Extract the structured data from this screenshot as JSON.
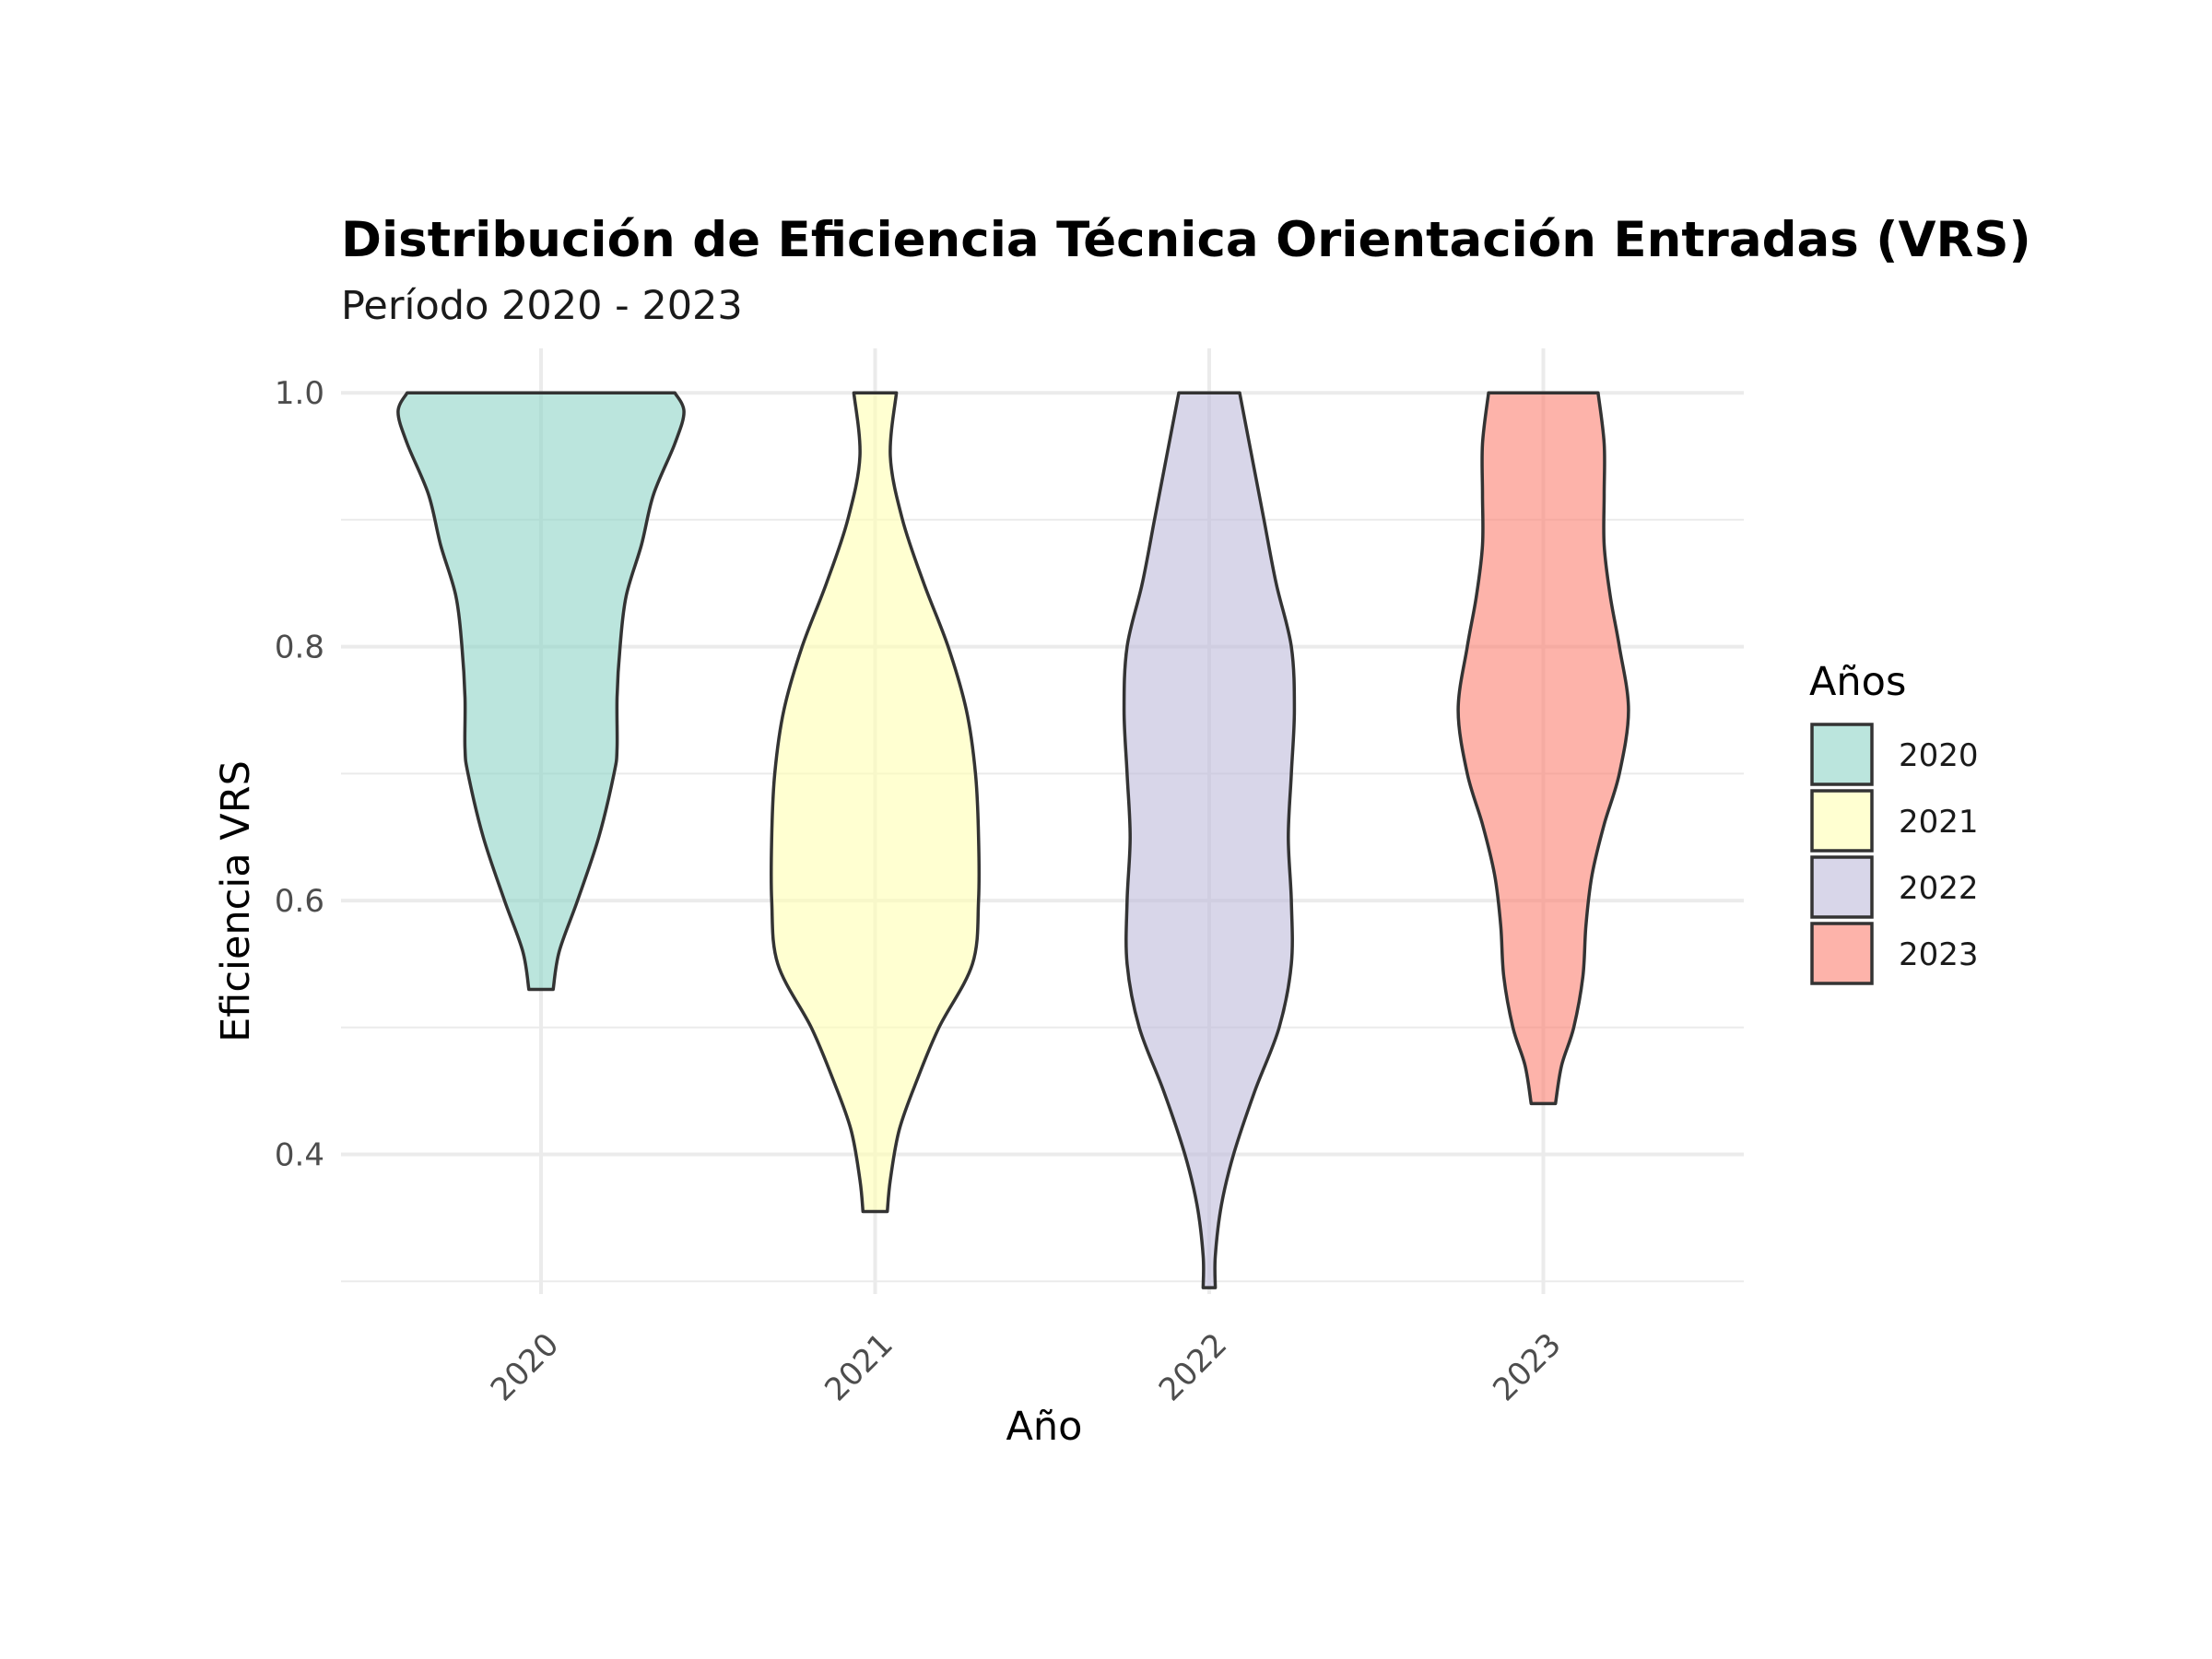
{
  "chart_data": {
    "type": "violin",
    "title": "Distribución de Eficiencia Técnica Orientación Entradas (VRS)",
    "subtitle": "Período 2020 - 2023",
    "xlabel": "Año",
    "ylabel": "Eficiencia VRS",
    "ylim": [
      0.29,
      1.035
    ],
    "yticks": [
      {
        "value": 0.4,
        "label": "0.4"
      },
      {
        "value": 0.6,
        "label": "0.6"
      },
      {
        "value": 0.8,
        "label": "0.8"
      },
      {
        "value": 1.0,
        "label": "1.0"
      }
    ],
    "grid": true,
    "legend": {
      "title": "Años",
      "position": "right"
    },
    "categories": [
      "2020",
      "2021",
      "2022",
      "2023"
    ],
    "series": [
      {
        "name": "2020",
        "color": "#8dd3c7",
        "min": 0.53,
        "max": 1.0,
        "profile": [
          [
            0.53,
            0.04
          ],
          [
            0.56,
            0.06
          ],
          [
            0.6,
            0.12
          ],
          [
            0.65,
            0.19
          ],
          [
            0.7,
            0.24
          ],
          [
            0.72,
            0.25
          ],
          [
            0.76,
            0.25
          ],
          [
            0.8,
            0.26
          ],
          [
            0.84,
            0.28
          ],
          [
            0.88,
            0.33
          ],
          [
            0.92,
            0.37
          ],
          [
            0.96,
            0.44
          ],
          [
            0.985,
            0.47
          ],
          [
            1.0,
            0.44
          ]
        ]
      },
      {
        "name": "2021",
        "color": "#ffffb3",
        "min": 0.355,
        "max": 1.0,
        "profile": [
          [
            0.355,
            0.04
          ],
          [
            0.38,
            0.05
          ],
          [
            0.42,
            0.08
          ],
          [
            0.46,
            0.14
          ],
          [
            0.5,
            0.21
          ],
          [
            0.55,
            0.32
          ],
          [
            0.6,
            0.34
          ],
          [
            0.65,
            0.34
          ],
          [
            0.7,
            0.33
          ],
          [
            0.75,
            0.3
          ],
          [
            0.8,
            0.24
          ],
          [
            0.85,
            0.16
          ],
          [
            0.9,
            0.09
          ],
          [
            0.95,
            0.05
          ],
          [
            1.0,
            0.07
          ]
        ]
      },
      {
        "name": "2022",
        "color": "#bebada",
        "min": 0.295,
        "max": 1.0,
        "profile": [
          [
            0.295,
            0.02
          ],
          [
            0.32,
            0.02
          ],
          [
            0.36,
            0.04
          ],
          [
            0.4,
            0.08
          ],
          [
            0.45,
            0.15
          ],
          [
            0.5,
            0.23
          ],
          [
            0.55,
            0.27
          ],
          [
            0.6,
            0.27
          ],
          [
            0.65,
            0.26
          ],
          [
            0.7,
            0.27
          ],
          [
            0.75,
            0.28
          ],
          [
            0.8,
            0.27
          ],
          [
            0.85,
            0.22
          ],
          [
            0.9,
            0.18
          ],
          [
            0.95,
            0.14
          ],
          [
            1.0,
            0.1
          ]
        ]
      },
      {
        "name": "2023",
        "color": "#fb8072",
        "min": 0.44,
        "max": 1.0,
        "profile": [
          [
            0.44,
            0.04
          ],
          [
            0.47,
            0.06
          ],
          [
            0.5,
            0.1
          ],
          [
            0.54,
            0.13
          ],
          [
            0.58,
            0.14
          ],
          [
            0.62,
            0.16
          ],
          [
            0.66,
            0.2
          ],
          [
            0.7,
            0.25
          ],
          [
            0.75,
            0.28
          ],
          [
            0.8,
            0.25
          ],
          [
            0.84,
            0.22
          ],
          [
            0.88,
            0.2
          ],
          [
            0.92,
            0.2
          ],
          [
            0.96,
            0.2
          ],
          [
            1.0,
            0.18
          ]
        ]
      }
    ]
  }
}
